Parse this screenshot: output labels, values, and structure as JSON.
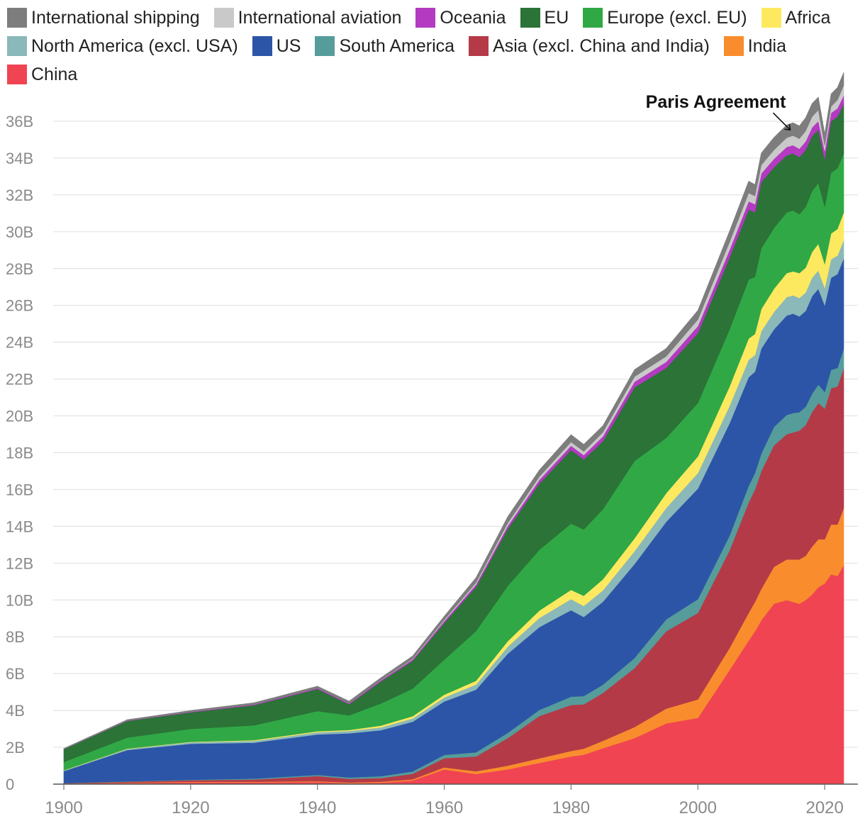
{
  "chart_data": {
    "type": "area",
    "stacked": true,
    "title": "",
    "xlabel": "",
    "ylabel": "",
    "xlim": [
      1900,
      2023
    ],
    "ylim": [
      0,
      37
    ],
    "x_ticks": [
      1900,
      1920,
      1940,
      1960,
      1980,
      2000,
      2020
    ],
    "x_tick_labels": [
      "1900",
      "1920",
      "1940",
      "1960",
      "1980",
      "2000",
      "2020"
    ],
    "y_ticks": [
      0,
      2,
      4,
      6,
      8,
      10,
      12,
      14,
      16,
      18,
      20,
      22,
      24,
      26,
      28,
      30,
      32,
      34,
      36
    ],
    "y_tick_labels": [
      "0",
      "2B",
      "4B",
      "6B",
      "8B",
      "10B",
      "12B",
      "14B",
      "16B",
      "18B",
      "20B",
      "22B",
      "24B",
      "26B",
      "28B",
      "30B",
      "32B",
      "34B",
      "36B"
    ],
    "annotations": [
      {
        "text": "Paris Agreement",
        "x": 2015,
        "y": 35.3
      }
    ],
    "x": [
      1900,
      1910,
      1920,
      1930,
      1940,
      1945,
      1950,
      1955,
      1960,
      1965,
      1970,
      1975,
      1980,
      1982,
      1985,
      1990,
      1995,
      2000,
      2005,
      2008,
      2009,
      2010,
      2012,
      2014,
      2015,
      2016,
      2017,
      2018,
      2019,
      2020,
      2021,
      2022,
      2023
    ],
    "series": [
      {
        "name": "China",
        "color": "#f04452",
        "values": [
          0.02,
          0.06,
          0.1,
          0.1,
          0.12,
          0.05,
          0.08,
          0.2,
          0.8,
          0.55,
          0.8,
          1.15,
          1.5,
          1.6,
          1.95,
          2.5,
          3.3,
          3.6,
          6.2,
          7.8,
          8.3,
          8.9,
          9.8,
          10.0,
          9.9,
          9.8,
          10.0,
          10.3,
          10.7,
          10.9,
          11.4,
          11.3,
          11.9
        ]
      },
      {
        "name": "India",
        "color": "#f98d2d",
        "values": [
          0.01,
          0.02,
          0.03,
          0.03,
          0.04,
          0.04,
          0.05,
          0.06,
          0.11,
          0.15,
          0.2,
          0.25,
          0.3,
          0.33,
          0.4,
          0.6,
          0.8,
          1.0,
          1.2,
          1.5,
          1.6,
          1.7,
          2.0,
          2.2,
          2.3,
          2.4,
          2.4,
          2.6,
          2.6,
          2.4,
          2.7,
          2.8,
          3.1
        ]
      },
      {
        "name": "Asia (excl. China and India)",
        "color": "#b43a48",
        "values": [
          0.02,
          0.05,
          0.08,
          0.12,
          0.28,
          0.2,
          0.2,
          0.3,
          0.5,
          0.8,
          1.5,
          2.3,
          2.5,
          2.4,
          2.6,
          3.2,
          4.2,
          4.7,
          5.3,
          6.0,
          6.1,
          6.4,
          6.6,
          6.8,
          6.9,
          7.0,
          7.1,
          7.3,
          7.4,
          7.1,
          7.4,
          7.5,
          7.6
        ]
      },
      {
        "name": "South America",
        "color": "#569c9b",
        "values": [
          0.01,
          0.02,
          0.03,
          0.05,
          0.06,
          0.07,
          0.1,
          0.13,
          0.18,
          0.23,
          0.28,
          0.33,
          0.45,
          0.45,
          0.45,
          0.55,
          0.65,
          0.75,
          0.8,
          0.9,
          0.9,
          0.95,
          1.0,
          1.05,
          1.05,
          1.0,
          1.0,
          1.0,
          1.0,
          0.9,
          1.0,
          1.0,
          1.05
        ]
      },
      {
        "name": "US",
        "color": "#2c55a7",
        "values": [
          0.65,
          1.7,
          1.95,
          1.95,
          2.2,
          2.4,
          2.5,
          2.7,
          2.9,
          3.4,
          4.3,
          4.5,
          4.7,
          4.3,
          4.5,
          5.1,
          5.3,
          6.0,
          6.1,
          5.9,
          5.5,
          5.7,
          5.3,
          5.4,
          5.4,
          5.2,
          5.2,
          5.3,
          5.2,
          4.7,
          5.0,
          5.1,
          4.9
        ]
      },
      {
        "name": "North America (excl. USA)",
        "color": "#8bb8b9",
        "values": [
          0.03,
          0.06,
          0.08,
          0.1,
          0.12,
          0.13,
          0.15,
          0.18,
          0.22,
          0.28,
          0.38,
          0.5,
          0.6,
          0.6,
          0.62,
          0.7,
          0.75,
          0.85,
          0.95,
          0.95,
          0.9,
          0.95,
          0.95,
          1.0,
          1.0,
          1.0,
          1.0,
          1.0,
          1.0,
          0.95,
          1.0,
          1.0,
          1.0
        ]
      },
      {
        "name": "Africa",
        "color": "#fde95f",
        "values": [
          0.01,
          0.02,
          0.03,
          0.04,
          0.05,
          0.05,
          0.1,
          0.12,
          0.15,
          0.2,
          0.3,
          0.4,
          0.5,
          0.55,
          0.6,
          0.7,
          0.8,
          0.9,
          1.05,
          1.15,
          1.15,
          1.2,
          1.25,
          1.3,
          1.3,
          1.35,
          1.35,
          1.4,
          1.45,
          1.3,
          1.4,
          1.45,
          1.5
        ]
      },
      {
        "name": "Europe (excl. EU)",
        "color": "#30a846",
        "values": [
          0.45,
          0.6,
          0.7,
          0.8,
          1.1,
          0.8,
          1.2,
          1.5,
          1.9,
          2.7,
          3.0,
          3.3,
          3.6,
          3.6,
          3.8,
          4.2,
          3.0,
          2.9,
          3.1,
          3.2,
          3.1,
          3.3,
          3.3,
          3.3,
          3.3,
          3.2,
          3.3,
          3.3,
          3.3,
          3.1,
          3.3,
          3.3,
          3.2
        ]
      },
      {
        "name": "EU",
        "color": "#2b7337",
        "values": [
          0.7,
          0.9,
          0.9,
          1.1,
          1.2,
          0.6,
          1.2,
          1.5,
          2.0,
          2.4,
          3.1,
          3.6,
          4.0,
          3.8,
          3.7,
          4.0,
          3.8,
          3.8,
          3.9,
          3.8,
          3.5,
          3.6,
          3.3,
          3.1,
          3.1,
          3.1,
          3.1,
          3.0,
          2.9,
          2.6,
          2.8,
          2.8,
          2.7
        ]
      },
      {
        "name": "Oceania",
        "color": "#b33ac1",
        "values": [
          0.01,
          0.02,
          0.03,
          0.04,
          0.05,
          0.05,
          0.06,
          0.08,
          0.1,
          0.13,
          0.16,
          0.2,
          0.23,
          0.24,
          0.26,
          0.3,
          0.33,
          0.38,
          0.42,
          0.45,
          0.45,
          0.46,
          0.46,
          0.45,
          0.45,
          0.46,
          0.46,
          0.46,
          0.46,
          0.43,
          0.45,
          0.45,
          0.45
        ]
      },
      {
        "name": "International aviation",
        "color": "#c9c9c9",
        "values": [
          0,
          0,
          0,
          0,
          0,
          0,
          0.01,
          0.03,
          0.06,
          0.1,
          0.15,
          0.17,
          0.2,
          0.2,
          0.22,
          0.28,
          0.3,
          0.35,
          0.42,
          0.45,
          0.44,
          0.46,
          0.48,
          0.5,
          0.52,
          0.54,
          0.56,
          0.58,
          0.6,
          0.3,
          0.35,
          0.45,
          0.55
        ]
      },
      {
        "name": "International shipping",
        "color": "#7d7d7d",
        "values": [
          0.03,
          0.05,
          0.07,
          0.09,
          0.1,
          0.12,
          0.13,
          0.16,
          0.2,
          0.27,
          0.35,
          0.36,
          0.4,
          0.38,
          0.36,
          0.38,
          0.43,
          0.5,
          0.6,
          0.65,
          0.62,
          0.65,
          0.68,
          0.7,
          0.7,
          0.7,
          0.72,
          0.72,
          0.7,
          0.65,
          0.68,
          0.68,
          0.7
        ]
      }
    ],
    "legend_order": [
      "International shipping",
      "International aviation",
      "Oceania",
      "EU",
      "Europe (excl. EU)",
      "Africa",
      "North America (excl. USA)",
      "US",
      "South America",
      "Asia (excl. China and India)",
      "India",
      "China"
    ],
    "legend_position": "top"
  }
}
